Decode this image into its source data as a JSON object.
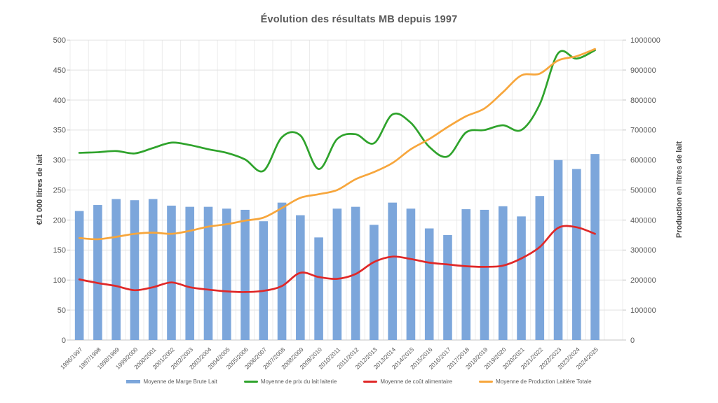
{
  "title": "Évolution des résultats MB depuis 1997",
  "axes": {
    "left": {
      "title": "€/1 000 litres de lait",
      "ticks": [
        "0",
        "50",
        "100",
        "150",
        "200",
        "250",
        "300",
        "350",
        "400",
        "450",
        "500"
      ]
    },
    "right": {
      "title": "Production en litres de lait",
      "ticks": [
        "0",
        "100000",
        "200000",
        "300000",
        "400000",
        "500000",
        "600000",
        "700000",
        "800000",
        "900000",
        "1000000"
      ]
    }
  },
  "colors": {
    "background": "#FFFFFF",
    "bar": "#7CA6DB",
    "price_line": "#2FA32C",
    "feed_cost_line": "#E02828",
    "production_line": "#F7A63C",
    "grid": "#E2E2E2",
    "grid_vertical": "#ECECEC",
    "axis_line": "#C6C6C6",
    "text": "#595959"
  },
  "chart_data": {
    "type": "combo",
    "categories": [
      "1996/1997",
      "1997/1998",
      "1998/1999",
      "1999/2000",
      "2000/2001",
      "2001/2002",
      "2002/2003",
      "2003/2004",
      "2004/2005",
      "2005/2006",
      "2006/2007",
      "2007/2008",
      "2008/2009",
      "2009/2010",
      "2010/2011",
      "2011/2012",
      "2012/2013",
      "2013/2014",
      "2014/2015",
      "2015/2016",
      "2016/2017",
      "2017/2018",
      "2018/2019",
      "2019/2020",
      "2020/2021",
      "2021/2022",
      "2022/2023",
      "2023/2024",
      "2024/2025"
    ],
    "left_axis": {
      "label": "€/1 000 litres de lait",
      "min": 0,
      "max": 500,
      "step": 50
    },
    "right_axis": {
      "label": "Production en litres de lait",
      "min": 0,
      "max": 1000000,
      "step": 100000
    },
    "grid": true,
    "legend_position": "bottom",
    "series": [
      {
        "id": "marge-brute-lait",
        "name": "Moyenne de Marge Brute Lait",
        "type": "bar",
        "axis": "left",
        "color": "#7CA6DB",
        "values": [
          215,
          225,
          235,
          233,
          235,
          224,
          222,
          222,
          219,
          217,
          198,
          229,
          208,
          171,
          219,
          222,
          192,
          229,
          219,
          186,
          175,
          218,
          217,
          223,
          206,
          240,
          300,
          285,
          310
        ]
      },
      {
        "id": "prix-du-lait-laiterie",
        "name": "Moyenne de prix du lait laiterie",
        "type": "line",
        "axis": "left",
        "color": "#2FA32C",
        "values": [
          312,
          313,
          315,
          311,
          320,
          329,
          325,
          318,
          312,
          301,
          282,
          338,
          341,
          285,
          335,
          343,
          328,
          376,
          362,
          322,
          306,
          346,
          350,
          358,
          350,
          393,
          478,
          469,
          483
        ]
      },
      {
        "id": "cout-alimentaire",
        "name": "Moyenne de coût alimentaire",
        "type": "line",
        "axis": "left",
        "color": "#E02828",
        "values": [
          101,
          95,
          90,
          83,
          88,
          96,
          88,
          84,
          81,
          80,
          82,
          90,
          112,
          105,
          102,
          110,
          130,
          139,
          135,
          129,
          126,
          123,
          122,
          124,
          136,
          155,
          187,
          188,
          177
        ]
      },
      {
        "id": "production-laitiere-totale",
        "name": "Moyenne de Production Laitière Totale",
        "type": "line",
        "axis": "right",
        "color": "#F7A63C",
        "values": [
          340000,
          336000,
          344000,
          354000,
          358000,
          354000,
          364000,
          378000,
          386000,
          398000,
          408000,
          440000,
          474000,
          486000,
          500000,
          536000,
          560000,
          590000,
          636000,
          670000,
          710000,
          746000,
          772000,
          826000,
          882000,
          888000,
          932000,
          946000,
          970000
        ]
      }
    ]
  }
}
